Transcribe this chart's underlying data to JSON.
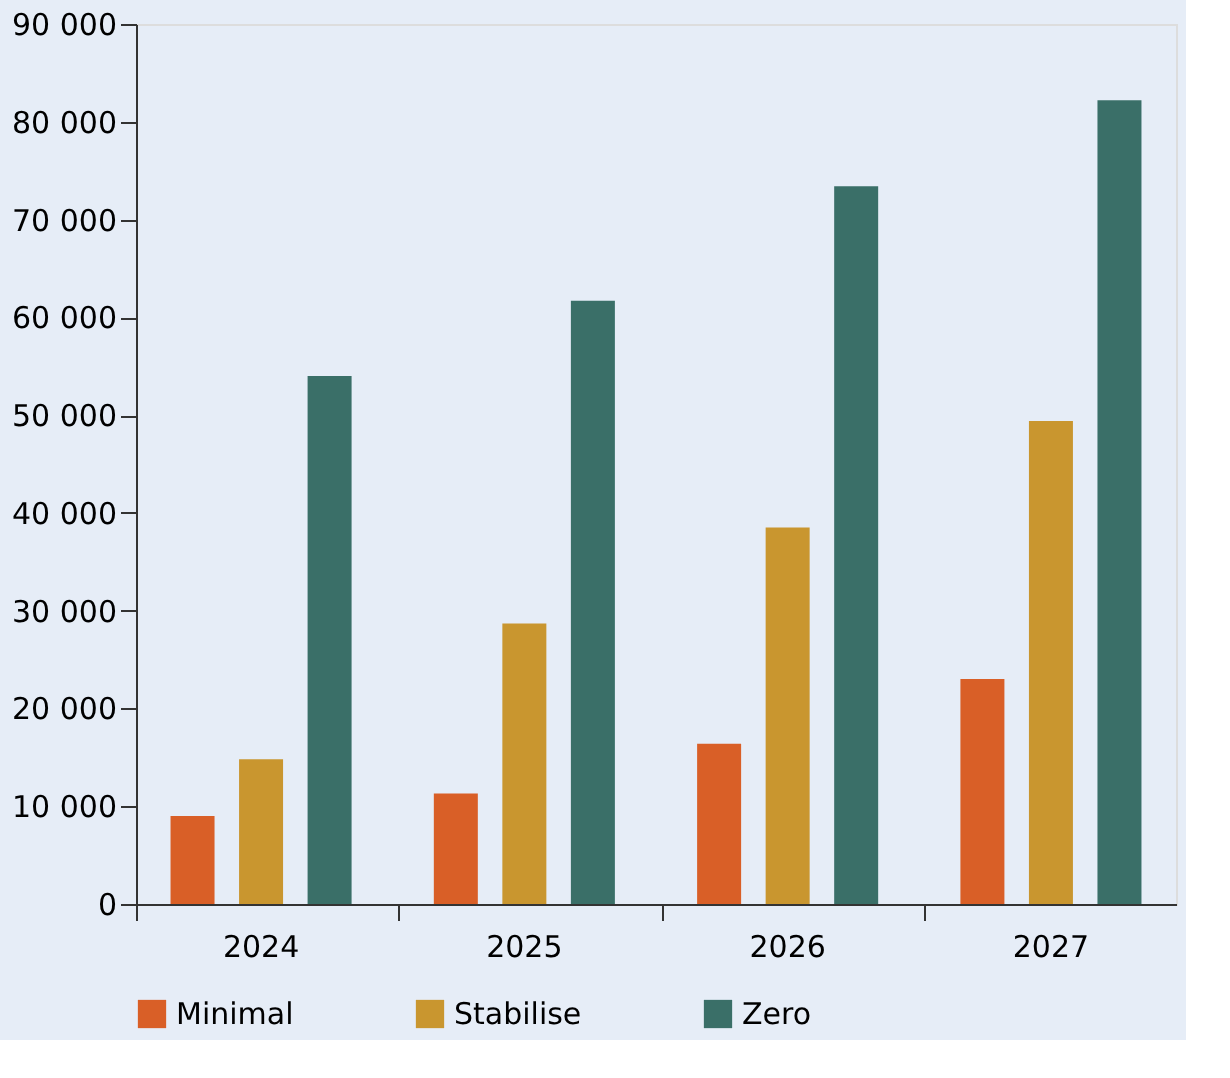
{
  "chart_data": {
    "type": "bar",
    "categories": [
      "2024",
      "2025",
      "2026",
      "2027"
    ],
    "series": [
      {
        "name": "Minimal",
        "color": "#d95f27",
        "values": [
          9000,
          11300,
          16400,
          23000
        ]
      },
      {
        "name": "Stabilise",
        "color": "#c9962f",
        "values": [
          14800,
          28700,
          38500,
          49400
        ]
      },
      {
        "name": "Zero",
        "color": "#3a6f68",
        "values": [
          54000,
          61700,
          73400,
          82200
        ]
      }
    ],
    "ylim": [
      0,
      90000
    ],
    "yticks": [
      {
        "value": 0,
        "label": "0"
      },
      {
        "value": 10000,
        "label": "10 000"
      },
      {
        "value": 20000,
        "label": "20 000"
      },
      {
        "value": 30000,
        "label": "30 000"
      },
      {
        "value": 40000,
        "label": "40 000"
      },
      {
        "value": 50000,
        "label": "50 000"
      },
      {
        "value": 60000,
        "label": "60 000"
      },
      {
        "value": 70000,
        "label": "70 000"
      },
      {
        "value": 80000,
        "label": "80 000"
      },
      {
        "value": 90000,
        "label": "90 000"
      }
    ],
    "grid": false,
    "legend": "bottom"
  }
}
